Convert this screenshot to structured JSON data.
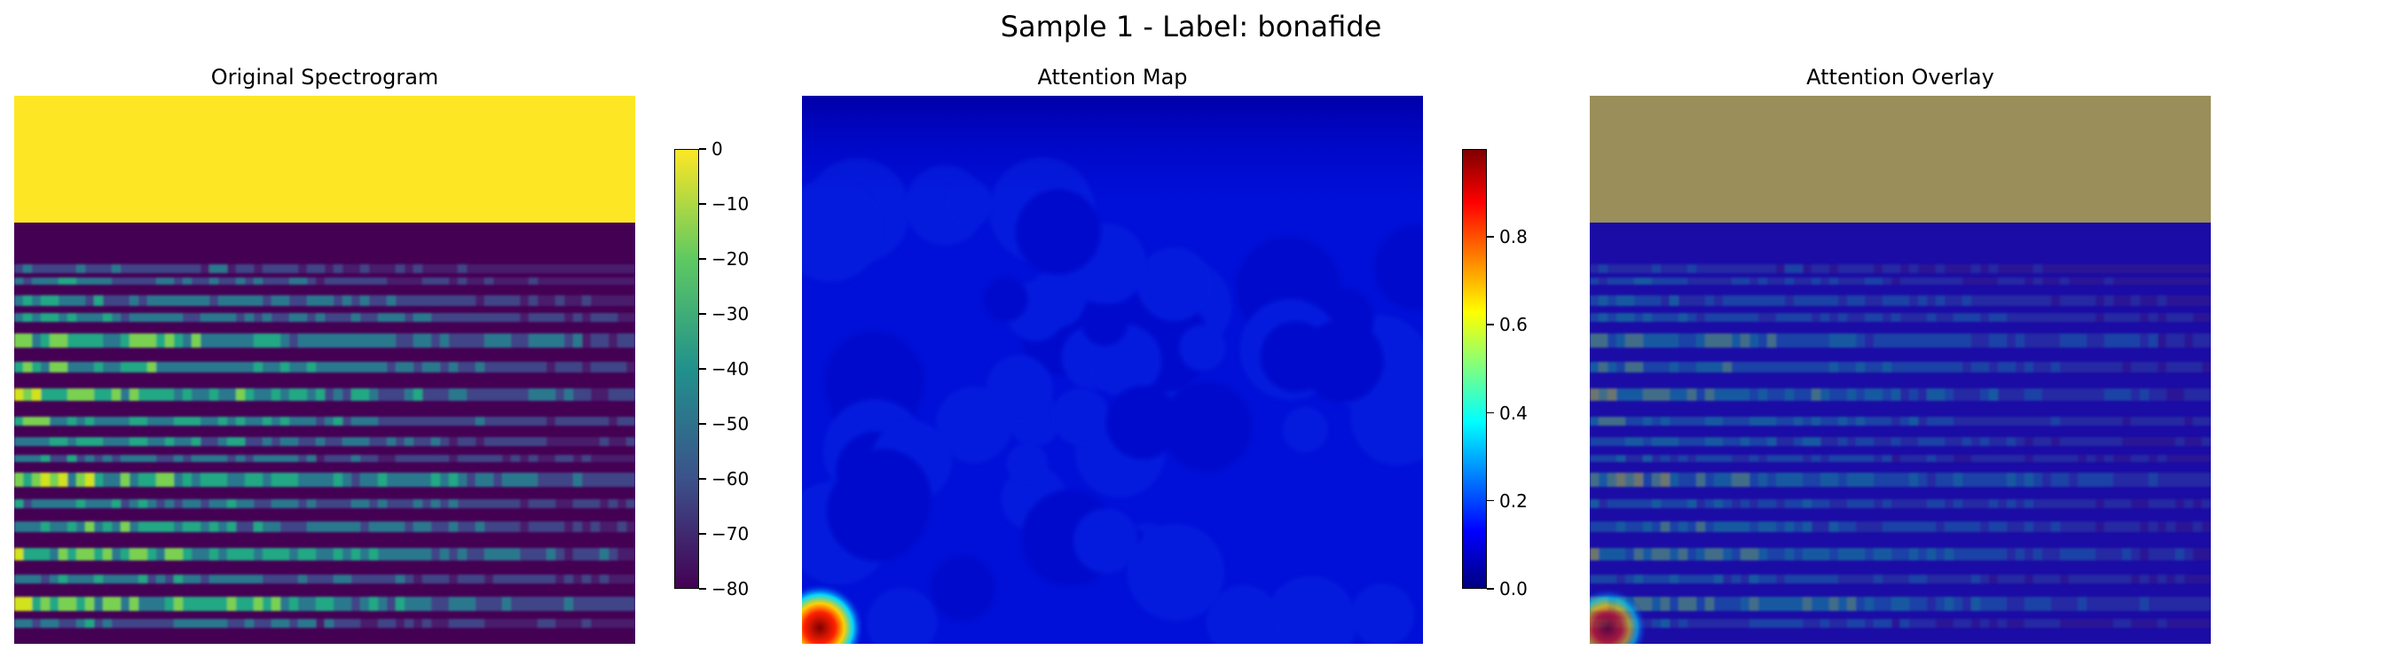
{
  "figure": {
    "title": "Sample 1 - Label: bonafide"
  },
  "chart_data": [
    {
      "type": "heatmap",
      "title": "Original Spectrogram",
      "colormap": "viridis",
      "colorbar": {
        "min": -80,
        "max": 0,
        "ticks": [
          0,
          -10,
          -20,
          -30,
          -40,
          -50,
          -60,
          -70,
          -80
        ]
      },
      "axes": "off"
    },
    {
      "type": "heatmap",
      "title": "Attention Map",
      "colormap": "jet",
      "colorbar": {
        "min": 0.0,
        "max": 1.0,
        "ticks": [
          0.8,
          0.6,
          0.4,
          0.2,
          0.0
        ],
        "tick_labels": [
          "0.8",
          "0.6",
          "0.4",
          "0.2",
          "0.0"
        ]
      },
      "axes": "off"
    },
    {
      "type": "heatmap",
      "title": "Attention Overlay",
      "colormap": "viridis + jet overlay",
      "axes": "off"
    }
  ],
  "colors": {
    "viridis_top": "#fde725",
    "viridis_mid": "#21918c",
    "viridis_bottom": "#440154",
    "jet_top": "#7f0000",
    "jet_mid": "#00ffff",
    "jet_bottom": "#00007f"
  }
}
